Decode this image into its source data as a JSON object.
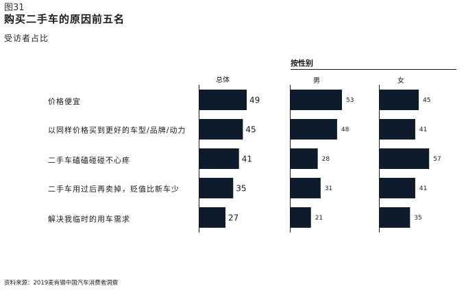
{
  "figure_label": "图31",
  "chart_data": {
    "type": "bar",
    "title": "购买二手车的原因前五名",
    "subtitle": "受访者占比",
    "group_heading": "按性别",
    "source": "资料来源：2019麦肯锡中国汽车消费者洞察",
    "categories": [
      "价格便宜",
      "以同样价格买到更好的车型/品牌/动力",
      "二手车磕磕碰碰不心疼",
      "二手车用过后再卖掉，贬值比新车少",
      "解决我临时的用车需求"
    ],
    "series": [
      {
        "name": "总体",
        "values": [
          49,
          45,
          41,
          35,
          27
        ]
      },
      {
        "name": "男",
        "values": [
          53,
          48,
          28,
          31,
          21
        ]
      },
      {
        "name": "女",
        "values": [
          45,
          41,
          57,
          41,
          35
        ]
      }
    ],
    "bar_color": "#0d1b2a"
  }
}
